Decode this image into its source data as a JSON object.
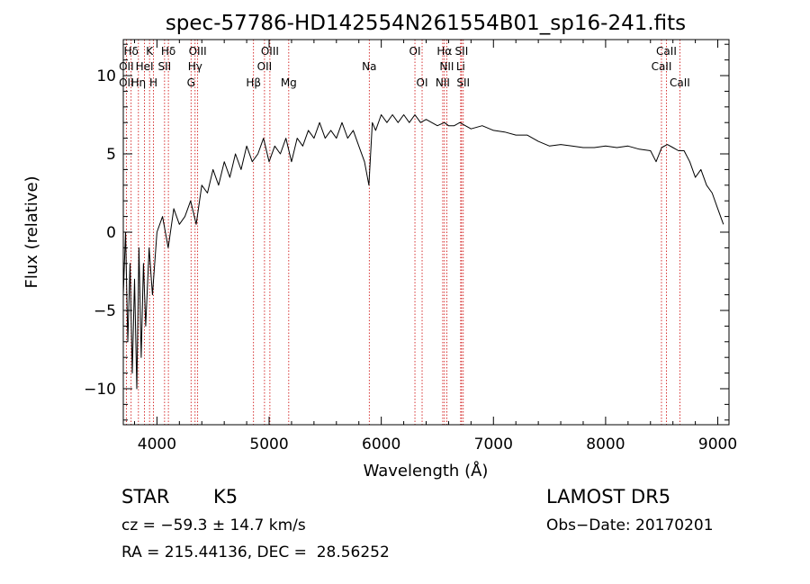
{
  "chart_data": {
    "type": "line",
    "title": "spec-57786-HD142554N261554B01_sp16-241.fits",
    "xlabel": "Wavelength (Å)",
    "ylabel": "Flux (relative)",
    "xlim": [
      3700,
      9100
    ],
    "ylim": [
      -12.3,
      12.3
    ],
    "xticks": [
      4000,
      5000,
      6000,
      7000,
      8000,
      9000
    ],
    "yticks": [
      -10,
      -5,
      0,
      5,
      10
    ],
    "grid": false,
    "series": [
      {
        "name": "",
        "color": "#000000",
        "x": [
          3700,
          3720,
          3740,
          3760,
          3780,
          3800,
          3820,
          3840,
          3860,
          3880,
          3900,
          3930,
          3960,
          4000,
          4050,
          4100,
          4150,
          4200,
          4250,
          4300,
          4350,
          4400,
          4450,
          4500,
          4550,
          4600,
          4650,
          4700,
          4750,
          4800,
          4850,
          4900,
          4950,
          5000,
          5050,
          5100,
          5150,
          5200,
          5250,
          5300,
          5350,
          5400,
          5450,
          5500,
          5550,
          5600,
          5650,
          5700,
          5750,
          5800,
          5850,
          5890,
          5920,
          5950,
          6000,
          6050,
          6100,
          6150,
          6200,
          6250,
          6300,
          6350,
          6400,
          6450,
          6500,
          6563,
          6600,
          6650,
          6700,
          6750,
          6800,
          6900,
          7000,
          7100,
          7200,
          7300,
          7400,
          7500,
          7600,
          7700,
          7800,
          7900,
          8000,
          8100,
          8200,
          8300,
          8400,
          8450,
          8500,
          8550,
          8600,
          8650,
          8700,
          8750,
          8800,
          8850,
          8900,
          8950,
          9000,
          9050
        ],
        "y": [
          -4,
          0,
          -7,
          -2,
          -9,
          -3,
          -10,
          -1,
          -8,
          -2,
          -6,
          -1,
          -4,
          0,
          1,
          -1,
          1.5,
          0.5,
          1,
          2,
          0.5,
          3,
          2.5,
          4,
          3,
          4.5,
          3.5,
          5,
          4,
          5.5,
          4.5,
          5,
          6,
          4.5,
          5.5,
          5,
          6,
          4.5,
          6,
          5.5,
          6.5,
          6,
          7,
          6,
          6.5,
          6,
          7,
          6,
          6.5,
          5.5,
          4.5,
          3,
          7,
          6.5,
          7.5,
          7,
          7.5,
          7,
          7.5,
          7,
          7.5,
          7,
          7.2,
          7,
          6.8,
          7,
          6.8,
          6.8,
          7,
          6.8,
          6.6,
          6.8,
          6.5,
          6.4,
          6.2,
          6.2,
          5.8,
          5.5,
          5.6,
          5.5,
          5.4,
          5.4,
          5.5,
          5.4,
          5.5,
          5.3,
          5.2,
          4.5,
          5.4,
          5.6,
          5.4,
          5.2,
          5.2,
          4.5,
          3.5,
          4,
          3,
          2.5,
          1.5,
          0.5
        ]
      }
    ],
    "annotations": [
      {
        "label": "Hδ",
        "x": 3770,
        "row": 1
      },
      {
        "label": "OII",
        "x": 3727,
        "row": 2
      },
      {
        "label": "OII",
        "x": 3727,
        "row": 3
      },
      {
        "label": "K",
        "x": 3934,
        "row": 1
      },
      {
        "label": "HeI",
        "x": 3889,
        "row": 2
      },
      {
        "label": "Hη",
        "x": 3835,
        "row": 3
      },
      {
        "label": "SII",
        "x": 4068,
        "row": 2
      },
      {
        "label": "H",
        "x": 3969,
        "row": 3
      },
      {
        "label": "Hδ",
        "x": 4102,
        "row": 1
      },
      {
        "label": "OIII",
        "x": 4363,
        "row": 1
      },
      {
        "label": "Hγ",
        "x": 4340,
        "row": 2
      },
      {
        "label": "G",
        "x": 4304,
        "row": 3
      },
      {
        "label": "OIII",
        "x": 5007,
        "row": 1
      },
      {
        "label": "OII",
        "x": 4959,
        "row": 2
      },
      {
        "label": "Hβ",
        "x": 4861,
        "row": 3
      },
      {
        "label": "Mg",
        "x": 5175,
        "row": 3
      },
      {
        "label": "Na",
        "x": 5893,
        "row": 2
      },
      {
        "label": "OI",
        "x": 6300,
        "row": 1
      },
      {
        "label": "OI",
        "x": 6364,
        "row": 3
      },
      {
        "label": "Hα",
        "x": 6563,
        "row": 1
      },
      {
        "label": "SII",
        "x": 6716,
        "row": 1
      },
      {
        "label": "NII",
        "x": 6584,
        "row": 2
      },
      {
        "label": "Li",
        "x": 6708,
        "row": 2
      },
      {
        "label": "NII",
        "x": 6548,
        "row": 3
      },
      {
        "label": "SII",
        "x": 6731,
        "row": 3
      },
      {
        "label": "CaII",
        "x": 8542,
        "row": 1
      },
      {
        "label": "CaII",
        "x": 8498,
        "row": 2
      },
      {
        "label": "CaII",
        "x": 8662,
        "row": 3
      }
    ],
    "line_marker_color": "#cc0000"
  },
  "info": {
    "object_class": "STAR",
    "subclass": "K5",
    "survey": "LAMOST DR5",
    "velocity": "cz = −59.3 ± 14.7 km/s",
    "obs_date": "Obs−Date: 20170201",
    "coords": "RA = 215.44136, DEC =  28.56252"
  }
}
